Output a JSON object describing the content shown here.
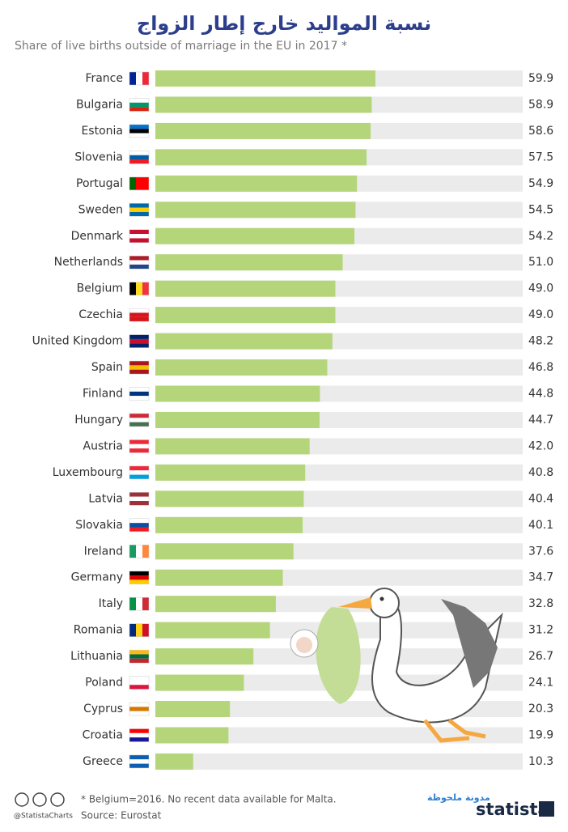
{
  "chart_data": {
    "type": "bar",
    "orientation": "horizontal",
    "title": "نسبة المواليد خارج إطار الزواج",
    "subtitle": "Share of live births outside of marriage in the EU in 2017 *",
    "categories": [
      "France",
      "Bulgaria",
      "Estonia",
      "Slovenia",
      "Portugal",
      "Sweden",
      "Denmark",
      "Netherlands",
      "Belgium",
      "Czechia",
      "United Kingdom",
      "Spain",
      "Finland",
      "Hungary",
      "Austria",
      "Luxembourg",
      "Latvia",
      "Slovakia",
      "Ireland",
      "Germany",
      "Italy",
      "Romania",
      "Lithuania",
      "Poland",
      "Cyprus",
      "Croatia",
      "Greece"
    ],
    "values": [
      59.9,
      58.9,
      58.6,
      57.5,
      54.9,
      54.5,
      54.2,
      51.0,
      49.0,
      49.0,
      48.2,
      46.8,
      44.8,
      44.7,
      42.0,
      40.8,
      40.4,
      40.1,
      37.6,
      34.7,
      32.8,
      31.2,
      26.7,
      24.1,
      20.3,
      19.9,
      10.3
    ],
    "value_labels": [
      "59.9",
      "58.9",
      "58.6",
      "57.5",
      "54.9",
      "54.5",
      "54.2",
      "51.0",
      "49.0",
      "49.0",
      "48.2",
      "46.8",
      "44.8",
      "44.7",
      "42.0",
      "40.8",
      "40.4",
      "40.1",
      "37.6",
      "34.7",
      "32.8",
      "31.2",
      "26.7",
      "24.1",
      "20.3",
      "19.9",
      "10.3"
    ],
    "color": "#b5d57b",
    "track_color": "#ebebeb",
    "xlim": [
      0,
      100
    ],
    "note": "* Belgium=2016. No recent data available for Malta.",
    "source": "Source: Eurostat",
    "handle": "@StatistaCharts",
    "brand": "statista",
    "watermark": "مدونة ملحوظة"
  }
}
